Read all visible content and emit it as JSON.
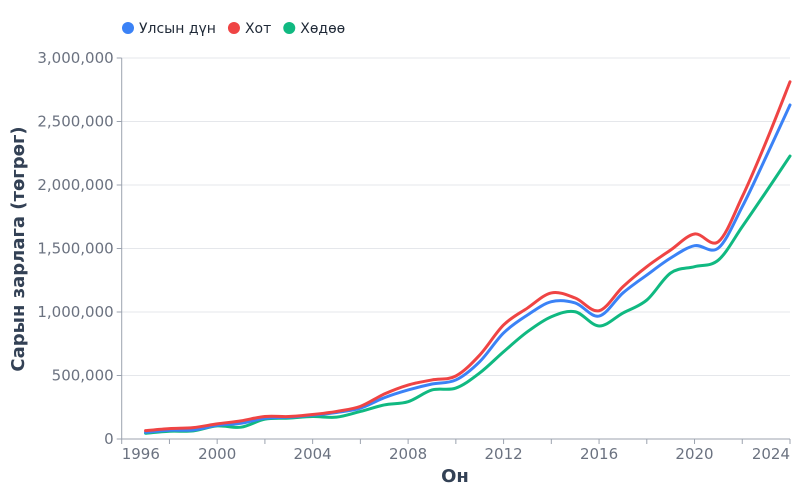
{
  "chart_data": {
    "type": "line",
    "title": "",
    "xlabel": "Он",
    "ylabel": "Сарын зарлага (төгрөг)",
    "x": [
      1997,
      1998,
      1999,
      2000,
      2001,
      2002,
      2003,
      2004,
      2005,
      2006,
      2007,
      2008,
      2009,
      2010,
      2011,
      2012,
      2013,
      2014,
      2015,
      2016,
      2017,
      2018,
      2019,
      2020,
      2021,
      2022,
      2023,
      2024
    ],
    "xlim": [
      1996,
      2024
    ],
    "ylim": [
      0,
      3000000
    ],
    "x_ticks": [
      "1996",
      "2000",
      "2004",
      "2008",
      "2012",
      "2016",
      "2020",
      "2024"
    ],
    "y_ticks": [
      "0",
      "500,000",
      "1,000,000",
      "1,500,000",
      "2,000,000",
      "2,500,000",
      "3,000,000"
    ],
    "grid": "horizontal",
    "legend_position": "top-left",
    "series": [
      {
        "name": "Улсын дүн",
        "color": "#3b82f6",
        "values": [
          53000,
          69000,
          71000,
          108000,
          124000,
          164000,
          172000,
          188000,
          209000,
          243000,
          325000,
          386000,
          433000,
          465000,
          609000,
          835000,
          976000,
          1081000,
          1071000,
          968000,
          1150000,
          1291000,
          1425000,
          1522000,
          1504000,
          1829000,
          2223000,
          2630000
        ]
      },
      {
        "name": "Хот",
        "color": "#ef4444",
        "values": [
          66000,
          82000,
          90000,
          119000,
          143000,
          177000,
          177000,
          193000,
          217000,
          257000,
          354000,
          425000,
          465000,
          496000,
          661000,
          898000,
          1031000,
          1150000,
          1110000,
          1010000,
          1199000,
          1357000,
          1488000,
          1614000,
          1554000,
          1908000,
          2341000,
          2813000
        ]
      },
      {
        "name": "Хөдөө",
        "color": "#10b981",
        "values": [
          45000,
          61000,
          64000,
          103000,
          93000,
          156000,
          164000,
          177000,
          172000,
          217000,
          268000,
          294000,
          386000,
          401000,
          520000,
          687000,
          845000,
          963000,
          1002000,
          890000,
          992000,
          1094000,
          1307000,
          1357000,
          1409000,
          1672000,
          1947000,
          2228000
        ]
      }
    ]
  }
}
